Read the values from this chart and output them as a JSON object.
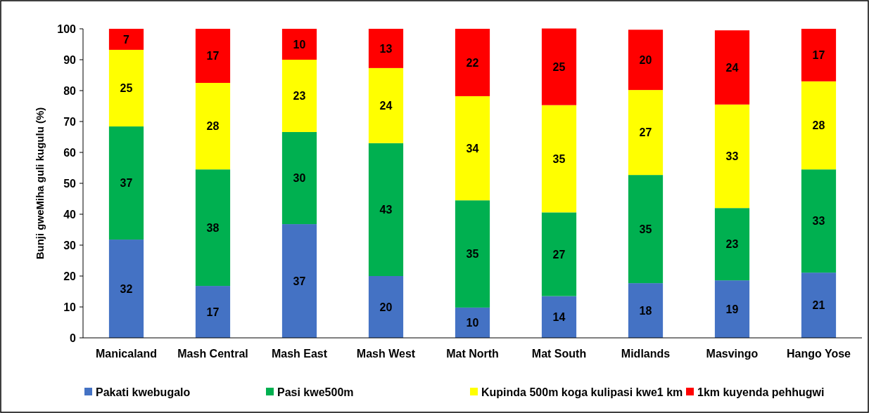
{
  "chart_data": {
    "type": "bar",
    "stacked": true,
    "ylabel": "Bunji gweMiha guli kugulu (%)",
    "categories": [
      "Manicaland",
      "Mash Central",
      "Mash East",
      "Mash West",
      "Mat North",
      "Mat South",
      "Midlands",
      "Masvingo",
      "Hango Yose"
    ],
    "series": [
      {
        "name": "Pakati kwebugalo",
        "color": "#4472c4",
        "values": [
          31.8,
          16.8,
          36.8,
          20.0,
          9.8,
          13.5,
          17.7,
          18.6,
          21.1
        ],
        "value_labels": [
          "32",
          "17",
          "37",
          "20",
          "10",
          "14",
          "18",
          "19",
          "21"
        ]
      },
      {
        "name": "Pasi kwe500m",
        "color": "#00b050",
        "values": [
          36.6,
          37.7,
          29.8,
          43.0,
          34.7,
          27.1,
          35.0,
          23.4,
          33.4
        ],
        "value_labels": [
          "37",
          "38",
          "30",
          "43",
          "35",
          "27",
          "35",
          "23",
          "33"
        ]
      },
      {
        "name": "Kupinda 500m koga kulipasi kwe1 km",
        "color": "#ffff00",
        "values": [
          24.8,
          28.0,
          23.4,
          24.3,
          33.7,
          34.7,
          27.5,
          33.5,
          28.5
        ],
        "value_labels": [
          "25",
          "28",
          "23",
          "24",
          "34",
          "35",
          "27",
          "33",
          "28"
        ]
      },
      {
        "name": "1km kuyenda pehhugwi",
        "color": "#ff0000",
        "values": [
          6.8,
          17.5,
          10.0,
          12.7,
          21.8,
          24.8,
          19.5,
          24.0,
          17.0
        ],
        "value_labels": [
          "7",
          "17",
          "10",
          "13",
          "22",
          "25",
          "20",
          "24",
          "17"
        ]
      }
    ],
    "ylim": [
      0,
      100
    ],
    "yticks": [
      0,
      10,
      20,
      30,
      40,
      50,
      60,
      70,
      80,
      90,
      100
    ],
    "legend": "bottom"
  }
}
